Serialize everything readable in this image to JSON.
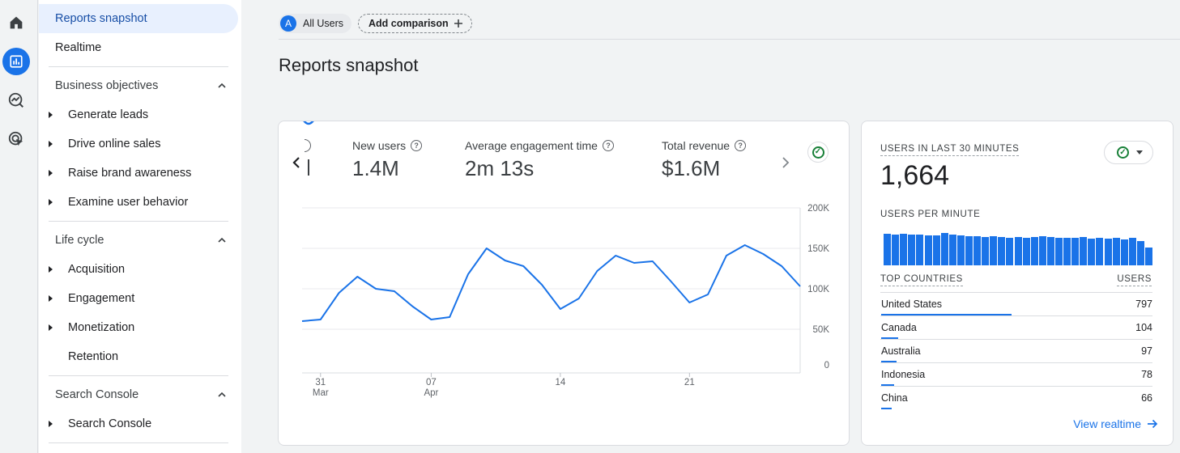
{
  "sidebar": {
    "reports_snapshot": "Reports snapshot",
    "realtime": "Realtime",
    "sections": [
      {
        "title": "Business objectives",
        "items": [
          "Generate leads",
          "Drive online sales",
          "Raise brand awareness",
          "Examine user behavior"
        ]
      },
      {
        "title": "Life cycle",
        "items": [
          "Acquisition",
          "Engagement",
          "Monetization",
          "Retention"
        ]
      },
      {
        "title": "Search Console",
        "items": [
          "Search Console"
        ]
      }
    ]
  },
  "topbar": {
    "segment_initial": "A",
    "segment_label": "All Users",
    "add_comparison": "Add comparison"
  },
  "page": {
    "title": "Reports snapshot"
  },
  "metrics": [
    {
      "label": "New users",
      "value": "1.4M"
    },
    {
      "label": "Average engagement time",
      "value": "2m 13s"
    },
    {
      "label": "Total revenue",
      "value": "$1.6M"
    }
  ],
  "chart_data": {
    "type": "line",
    "x_tick_labels": [
      {
        "day": "31",
        "month": "Mar"
      },
      {
        "day": "07",
        "month": "Apr"
      },
      {
        "day": "14",
        "month": ""
      },
      {
        "day": "21",
        "month": ""
      }
    ],
    "y_tick_labels": [
      "200K",
      "150K",
      "100K",
      "50K",
      "0"
    ],
    "ylim": [
      0,
      200000
    ],
    "grid": true,
    "series": [
      {
        "color": "#1a73e8",
        "values": [
          60000,
          62000,
          95000,
          115000,
          100000,
          97000,
          78000,
          62000,
          65000,
          118000,
          150000,
          135000,
          128000,
          105000,
          75000,
          88000,
          122000,
          141000,
          132000,
          134000,
          109000,
          83000,
          93000,
          141000,
          154000,
          143000,
          128000,
          103000
        ]
      }
    ]
  },
  "realtime": {
    "users_label": "USERS IN LAST 30 MINUTES",
    "users_value": "1,664",
    "per_minute_label": "USERS PER MINUTE",
    "per_minute_bars": [
      0.92,
      0.9,
      0.92,
      0.9,
      0.9,
      0.88,
      0.88,
      0.95,
      0.9,
      0.88,
      0.86,
      0.86,
      0.84,
      0.86,
      0.84,
      0.82,
      0.84,
      0.82,
      0.84,
      0.86,
      0.84,
      0.82,
      0.82,
      0.82,
      0.84,
      0.78,
      0.8,
      0.78,
      0.8,
      0.76,
      0.8,
      0.72,
      0.52
    ],
    "countries_header": "TOP COUNTRIES",
    "users_header": "USERS",
    "countries": [
      {
        "name": "United States",
        "value": "797",
        "share": 1.0
      },
      {
        "name": "Canada",
        "value": "104",
        "share": 0.13
      },
      {
        "name": "Australia",
        "value": "97",
        "share": 0.12
      },
      {
        "name": "Indonesia",
        "value": "78",
        "share": 0.1
      },
      {
        "name": "China",
        "value": "66",
        "share": 0.08
      }
    ],
    "view_realtime": "View realtime"
  },
  "colors": {
    "accent": "#1a73e8",
    "success": "#188038"
  }
}
